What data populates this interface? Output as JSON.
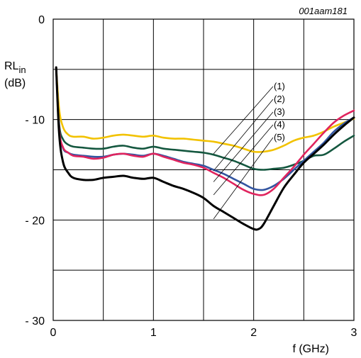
{
  "chart_data": {
    "type": "line",
    "code": "001aam181",
    "ylabel": {
      "main": "RL",
      "sub": "in",
      "unit": "(dB)"
    },
    "xlabel": "f (GHz)",
    "xlim": [
      0,
      3
    ],
    "ylim": [
      -30,
      0
    ],
    "xticks": [
      0,
      1,
      2,
      3
    ],
    "xtick_labels": [
      "0",
      "1",
      "2",
      "3"
    ],
    "yticks": [
      0,
      -10,
      -20,
      -30
    ],
    "ytick_labels": [
      "0",
      "- 10",
      "- 20",
      "- 30"
    ],
    "grid": true,
    "series": [
      {
        "name": "(1)",
        "color": "#f2c200",
        "x": [
          0.03,
          0.06,
          0.1,
          0.15,
          0.2,
          0.3,
          0.4,
          0.5,
          0.6,
          0.7,
          0.8,
          0.9,
          1.0,
          1.1,
          1.2,
          1.3,
          1.4,
          1.5,
          1.6,
          1.7,
          1.8,
          1.9,
          2.0,
          2.1,
          2.2,
          2.3,
          2.4,
          2.5,
          2.6,
          2.7,
          2.8,
          2.9,
          3.0
        ],
        "values": [
          -4.8,
          -9.0,
          -10.8,
          -11.5,
          -11.7,
          -11.7,
          -11.9,
          -11.8,
          -11.6,
          -11.5,
          -11.6,
          -11.7,
          -11.6,
          -11.8,
          -11.9,
          -11.9,
          -12.0,
          -12.1,
          -12.2,
          -12.4,
          -12.6,
          -12.9,
          -13.2,
          -13.2,
          -13.0,
          -12.6,
          -12.1,
          -11.8,
          -11.6,
          -11.2,
          -10.7,
          -10.3,
          -9.9
        ]
      },
      {
        "name": "(2)",
        "color": "#14573f",
        "x": [
          0.03,
          0.06,
          0.1,
          0.15,
          0.2,
          0.3,
          0.4,
          0.5,
          0.6,
          0.7,
          0.8,
          0.9,
          1.0,
          1.1,
          1.2,
          1.3,
          1.4,
          1.5,
          1.6,
          1.7,
          1.8,
          1.9,
          2.0,
          2.1,
          2.2,
          2.3,
          2.4,
          2.5,
          2.6,
          2.7,
          2.8,
          2.9,
          3.0
        ],
        "values": [
          -4.8,
          -10.5,
          -12.0,
          -12.5,
          -12.7,
          -12.8,
          -12.9,
          -12.9,
          -12.7,
          -12.6,
          -12.8,
          -12.9,
          -12.7,
          -12.9,
          -13.0,
          -13.1,
          -13.2,
          -13.3,
          -13.5,
          -13.8,
          -14.1,
          -14.5,
          -14.9,
          -15.0,
          -14.9,
          -14.8,
          -14.5,
          -14.1,
          -13.6,
          -13.5,
          -12.9,
          -12.2,
          -11.6
        ]
      },
      {
        "name": "(3)",
        "color": "#3355a0",
        "x": [
          0.03,
          0.06,
          0.1,
          0.15,
          0.2,
          0.3,
          0.4,
          0.5,
          0.6,
          0.7,
          0.8,
          0.9,
          1.0,
          1.1,
          1.2,
          1.3,
          1.4,
          1.5,
          1.6,
          1.7,
          1.8,
          1.9,
          2.0,
          2.1,
          2.2,
          2.3,
          2.4,
          2.5,
          2.6,
          2.7,
          2.8,
          2.9,
          3.0
        ],
        "values": [
          -4.8,
          -11.0,
          -12.9,
          -13.3,
          -13.5,
          -13.6,
          -13.7,
          -13.7,
          -13.5,
          -13.4,
          -13.5,
          -13.6,
          -13.4,
          -13.6,
          -13.9,
          -14.2,
          -14.4,
          -14.6,
          -15.0,
          -15.4,
          -15.9,
          -16.4,
          -16.9,
          -17.0,
          -16.6,
          -15.9,
          -15.0,
          -14.1,
          -13.2,
          -12.3,
          -11.2,
          -10.4,
          -9.8
        ]
      },
      {
        "name": "(4)",
        "color": "#e0245e",
        "x": [
          0.03,
          0.06,
          0.1,
          0.15,
          0.2,
          0.3,
          0.4,
          0.5,
          0.6,
          0.7,
          0.8,
          0.9,
          1.0,
          1.1,
          1.2,
          1.3,
          1.4,
          1.5,
          1.6,
          1.7,
          1.8,
          1.9,
          2.0,
          2.1,
          2.2,
          2.3,
          2.4,
          2.5,
          2.6,
          2.7,
          2.8,
          2.9,
          3.0
        ],
        "values": [
          -4.8,
          -11.0,
          -12.8,
          -13.3,
          -13.6,
          -13.7,
          -13.9,
          -13.8,
          -13.5,
          -13.4,
          -13.6,
          -13.7,
          -13.4,
          -13.7,
          -14.0,
          -14.3,
          -14.5,
          -14.8,
          -15.3,
          -15.8,
          -16.4,
          -17.0,
          -17.4,
          -17.5,
          -16.9,
          -15.8,
          -14.7,
          -13.5,
          -12.4,
          -11.3,
          -10.3,
          -9.6,
          -9.1
        ]
      },
      {
        "name": "(5)",
        "color": "#000000",
        "x": [
          0.03,
          0.06,
          0.1,
          0.15,
          0.2,
          0.3,
          0.4,
          0.5,
          0.6,
          0.7,
          0.8,
          0.9,
          1.0,
          1.1,
          1.2,
          1.3,
          1.4,
          1.5,
          1.6,
          1.7,
          1.8,
          1.9,
          2.0,
          2.05,
          2.1,
          2.2,
          2.3,
          2.4,
          2.5,
          2.6,
          2.7,
          2.8,
          2.9,
          3.0
        ],
        "values": [
          -4.8,
          -11.5,
          -14.3,
          -15.3,
          -15.8,
          -16.0,
          -16.0,
          -15.8,
          -15.7,
          -15.6,
          -15.8,
          -15.9,
          -15.8,
          -16.2,
          -16.6,
          -16.9,
          -17.3,
          -17.8,
          -18.6,
          -19.2,
          -19.8,
          -20.4,
          -20.9,
          -20.9,
          -20.4,
          -18.6,
          -16.8,
          -15.5,
          -14.3,
          -13.4,
          -12.5,
          -11.5,
          -10.6,
          -9.8
        ]
      }
    ]
  }
}
